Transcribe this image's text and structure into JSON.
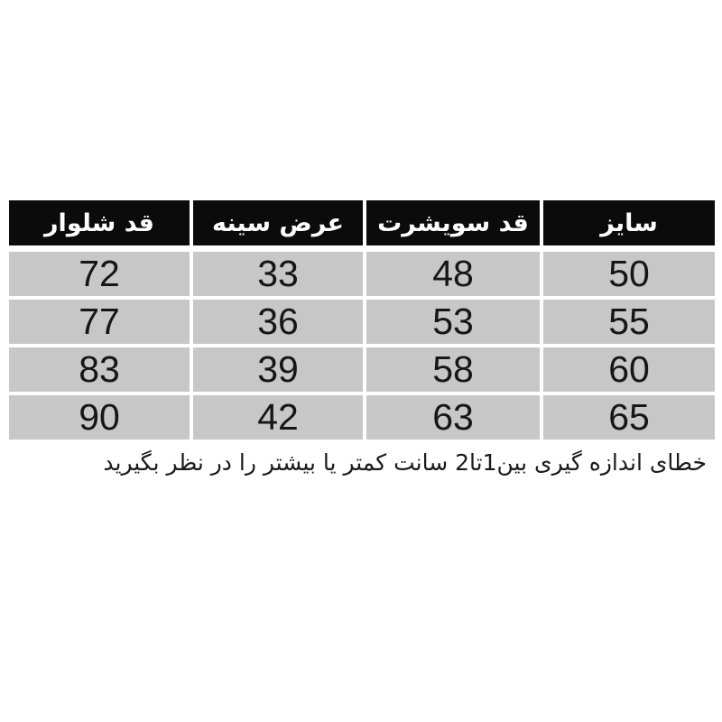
{
  "chart_data": {
    "type": "table",
    "columns_rtl": [
      "سایز",
      "قد سویشرت",
      "عرض سینه",
      "قد شلوار"
    ],
    "rows_rtl": [
      [
        "50",
        "48",
        "33",
        "72"
      ],
      [
        "55",
        "53",
        "36",
        "77"
      ],
      [
        "60",
        "58",
        "39",
        "83"
      ],
      [
        "65",
        "63",
        "42",
        "90"
      ]
    ],
    "note": "خطای اندازه گیری بین1تا2 سانت کمتر یا بیشتر را در نظر بگیرید",
    "layout": "header row black with white bold text, data rows gray, 4px white gaps, right-to-left columns"
  },
  "table": {
    "columns_rtl": [
      "سایز",
      "قد سویشرت",
      "عرض سینه",
      "قد شلوار"
    ],
    "rows_rtl": [
      [
        "50",
        "48",
        "33",
        "72"
      ],
      [
        "55",
        "53",
        "36",
        "77"
      ],
      [
        "60",
        "58",
        "39",
        "83"
      ],
      [
        "65",
        "63",
        "42",
        "90"
      ]
    ]
  },
  "footnote": "خطای اندازه گیری بین1تا2 سانت کمتر یا بیشتر را در نظر بگیرید",
  "colors": {
    "page_bg": "#ffffff",
    "header_bg": "#0b0b0b",
    "header_text": "#ffffff",
    "cell_bg": "#c7c7c7",
    "cell_text": "#161616",
    "note_text": "#1a1a1a"
  }
}
